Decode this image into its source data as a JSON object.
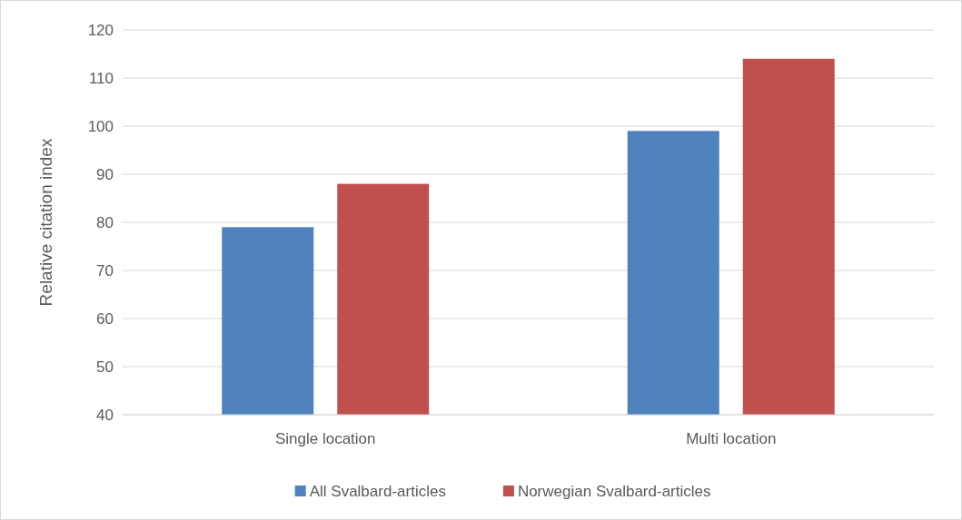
{
  "chart_data": {
    "type": "bar",
    "ylabel": "Relative citation index",
    "categories": [
      "Single location",
      "Multi location"
    ],
    "series": [
      {
        "name": "All Svalbard-articles",
        "color": "#4f81bd",
        "values": [
          79,
          99
        ]
      },
      {
        "name": "Norwegian Svalbard-articles",
        "color": "#c0504d",
        "values": [
          88,
          114
        ]
      }
    ],
    "ylim": [
      40,
      120
    ],
    "yticks": [
      40,
      50,
      60,
      70,
      80,
      90,
      100,
      110,
      120
    ],
    "grid": "y",
    "legend": "bottom"
  }
}
